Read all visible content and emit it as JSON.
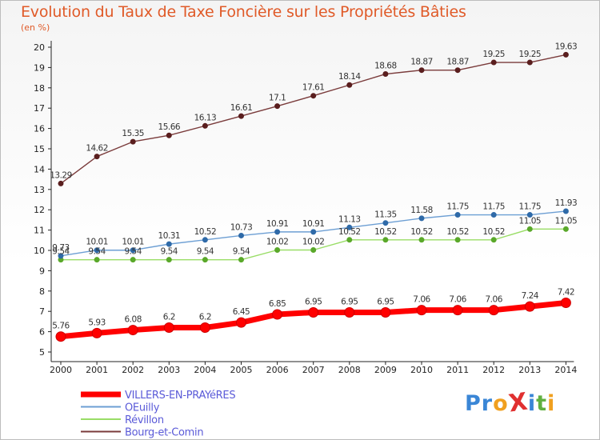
{
  "chart_data": {
    "type": "line",
    "title": "Evolution du Taux de Taxe Foncière sur les Propriétés Bâties",
    "ylabel": "(en %)",
    "xlabel": "",
    "ylim": [
      5,
      20
    ],
    "yticks": [
      5,
      6,
      7,
      8,
      9,
      10,
      11,
      12,
      13,
      14,
      15,
      16,
      17,
      18,
      19,
      20
    ],
    "categories": [
      "2000",
      "2001",
      "2002",
      "2003",
      "2004",
      "2005",
      "2006",
      "2007",
      "2008",
      "2009",
      "2010",
      "2011",
      "2012",
      "2013",
      "2014"
    ],
    "grid": false,
    "legend_position": "bottom-left",
    "series": [
      {
        "name": "VILLERS-EN-PRAYéRES",
        "color": "#ff0000",
        "values": [
          5.76,
          5.93,
          6.08,
          6.2,
          6.2,
          6.45,
          6.85,
          6.95,
          6.95,
          6.95,
          7.06,
          7.06,
          7.06,
          7.24,
          7.42
        ],
        "labels": [
          "5.76",
          "5.93",
          "6.08",
          "6.2",
          "6.2",
          "6.45",
          "6.85",
          "6.95",
          "6.95",
          "6.95",
          "7.06",
          "7.06",
          "7.06",
          "7.24",
          "7.42"
        ]
      },
      {
        "name": "OEuilly",
        "color": "#6d9fd4",
        "values": [
          9.73,
          10.01,
          10.01,
          10.31,
          10.52,
          10.73,
          10.91,
          10.91,
          11.13,
          11.35,
          11.58,
          11.75,
          11.75,
          11.75,
          11.93
        ],
        "labels": [
          "9.73",
          "10.01",
          "10.01",
          "10.31",
          "10.52",
          "10.73",
          "10.91",
          "10.91",
          "11.13",
          "11.35",
          "11.58",
          "11.75",
          "11.75",
          "11.75",
          "11.93"
        ]
      },
      {
        "name": "Révillon",
        "color": "#99dd66",
        "values": [
          9.54,
          9.54,
          9.54,
          9.54,
          9.54,
          9.54,
          10.02,
          10.02,
          10.52,
          10.52,
          10.52,
          10.52,
          10.52,
          11.05,
          11.05
        ],
        "labels": [
          "9.54",
          "9.54",
          "9.54",
          "9.54",
          "9.54",
          "9.54",
          "10.02",
          "10.02",
          "10.52",
          "10.52",
          "10.52",
          "10.52",
          "10.52",
          "11.05",
          "11.05"
        ]
      },
      {
        "name": "Bourg-et-Comin",
        "color": "#7a3b3b",
        "values": [
          13.29,
          14.62,
          15.35,
          15.66,
          16.13,
          16.61,
          17.1,
          17.61,
          18.14,
          18.68,
          18.87,
          18.87,
          19.25,
          19.25,
          19.63
        ],
        "labels": [
          "13.29",
          "14.62",
          "15.35",
          "15.66",
          "16.13",
          "16.61",
          "17.1",
          "17.61",
          "18.14",
          "18.68",
          "18.87",
          "18.87",
          "19.25",
          "19.25",
          "19.63"
        ]
      }
    ]
  },
  "logo": {
    "text": "ProXiti",
    "letters": [
      "P",
      "r",
      "o",
      "X",
      "i",
      "t",
      "i"
    ],
    "colors": [
      "#3a86d6",
      "#3a86d6",
      "#f0a020",
      "#e03030",
      "#3a86d6",
      "#60b040",
      "#f0a020"
    ]
  }
}
